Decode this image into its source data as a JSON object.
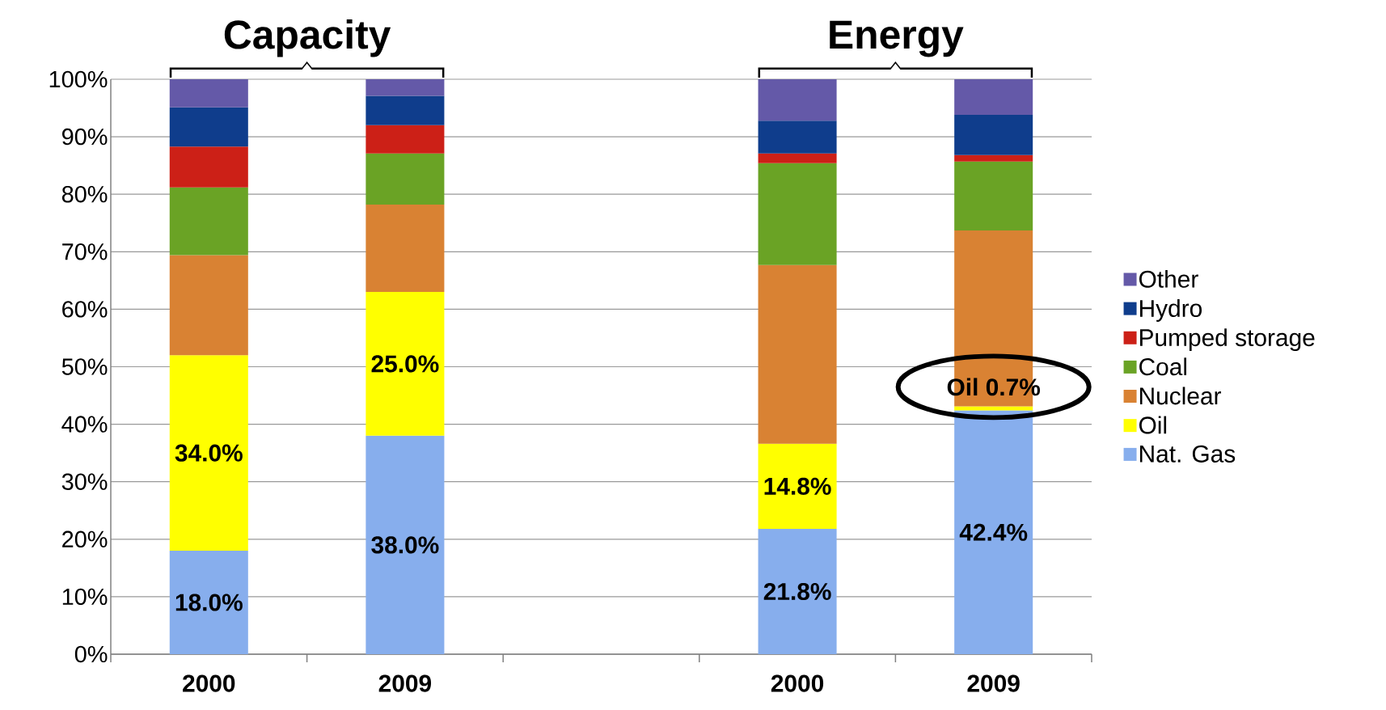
{
  "chart_data": {
    "type": "bar",
    "stacked": true,
    "categories": [
      "2000",
      "2009",
      null,
      "2000",
      "2009"
    ],
    "series": [
      {
        "name": "Nat. Gas",
        "color": "#87aeed",
        "values": [
          18.0,
          38.0,
          null,
          21.8,
          42.4
        ],
        "value_labels": [
          "18.0%",
          "38.0%",
          null,
          "21.8%",
          "42.4%"
        ]
      },
      {
        "name": "Oil",
        "color": "#ffff00",
        "values": [
          34.0,
          25.0,
          null,
          14.8,
          0.7
        ],
        "value_labels": [
          "34.0%",
          "25.0%",
          null,
          "14.8%",
          null
        ]
      },
      {
        "name": "Nuclear",
        "color": "#d98233",
        "values": [
          17.4,
          15.2,
          null,
          31.1,
          30.6
        ]
      },
      {
        "name": "Coal",
        "color": "#6aa325",
        "values": [
          11.8,
          8.9,
          null,
          17.7,
          12.0
        ]
      },
      {
        "name": "Pumped storage",
        "color": "#cc2017",
        "values": [
          7.1,
          4.9,
          null,
          1.7,
          1.1
        ]
      },
      {
        "name": "Hydro",
        "color": "#0f3d8c",
        "values": [
          6.8,
          5.1,
          null,
          5.7,
          7.0
        ]
      },
      {
        "name": "Other",
        "color": "#6459a8",
        "values": [
          4.9,
          2.9,
          null,
          7.2,
          6.2
        ]
      }
    ],
    "ylim": [
      0,
      100
    ],
    "yticks": [
      {
        "value": 0,
        "label": "0%"
      },
      {
        "value": 10,
        "label": "10%"
      },
      {
        "value": 20,
        "label": "20%"
      },
      {
        "value": 30,
        "label": "30%"
      },
      {
        "value": 40,
        "label": "40%"
      },
      {
        "value": 50,
        "label": "50%"
      },
      {
        "value": 60,
        "label": "60%"
      },
      {
        "value": 70,
        "label": "70%"
      },
      {
        "value": 80,
        "label": "80%"
      },
      {
        "value": 90,
        "label": "90%"
      },
      {
        "value": 100,
        "label": "100%"
      }
    ],
    "grid": "y",
    "legend": "right",
    "annotations": [
      "Capacity",
      "Energy",
      "Oil 0.7%"
    ]
  }
}
